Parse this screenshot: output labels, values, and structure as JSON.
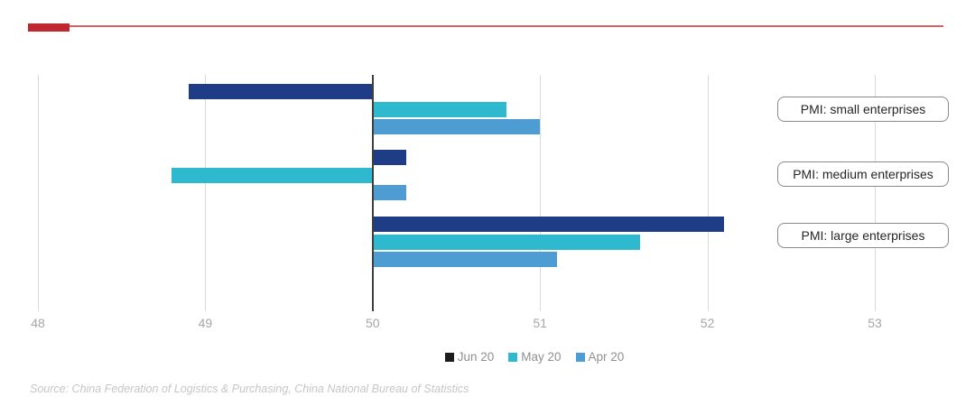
{
  "accent": {
    "block_color": "#BE282E",
    "line_color": "#C8666A"
  },
  "chart_data": {
    "type": "bar",
    "orientation": "horizontal",
    "baseline": 50,
    "xlim": [
      48,
      53.5
    ],
    "xticks": [
      48,
      49,
      50,
      51,
      52,
      53
    ],
    "grid": true,
    "legend_position": "bottom",
    "categories": [
      "PMI: small enterprises",
      "PMI: medium enterprises",
      "PMI: large enterprises"
    ],
    "series": [
      {
        "name": "Jun 20",
        "color": "#1F3C87",
        "legend_color": "#1C1C1C",
        "values": [
          48.9,
          50.2,
          52.1
        ]
      },
      {
        "name": "May 20",
        "color": "#2FB9CE",
        "values": [
          50.8,
          48.8,
          51.6
        ]
      },
      {
        "name": "Apr 20",
        "color": "#4D9DD3",
        "values": [
          51.0,
          50.2,
          51.1
        ]
      }
    ]
  },
  "source": "Source: China Federation of Logistics & Purchasing, China National Bureau of Statistics"
}
